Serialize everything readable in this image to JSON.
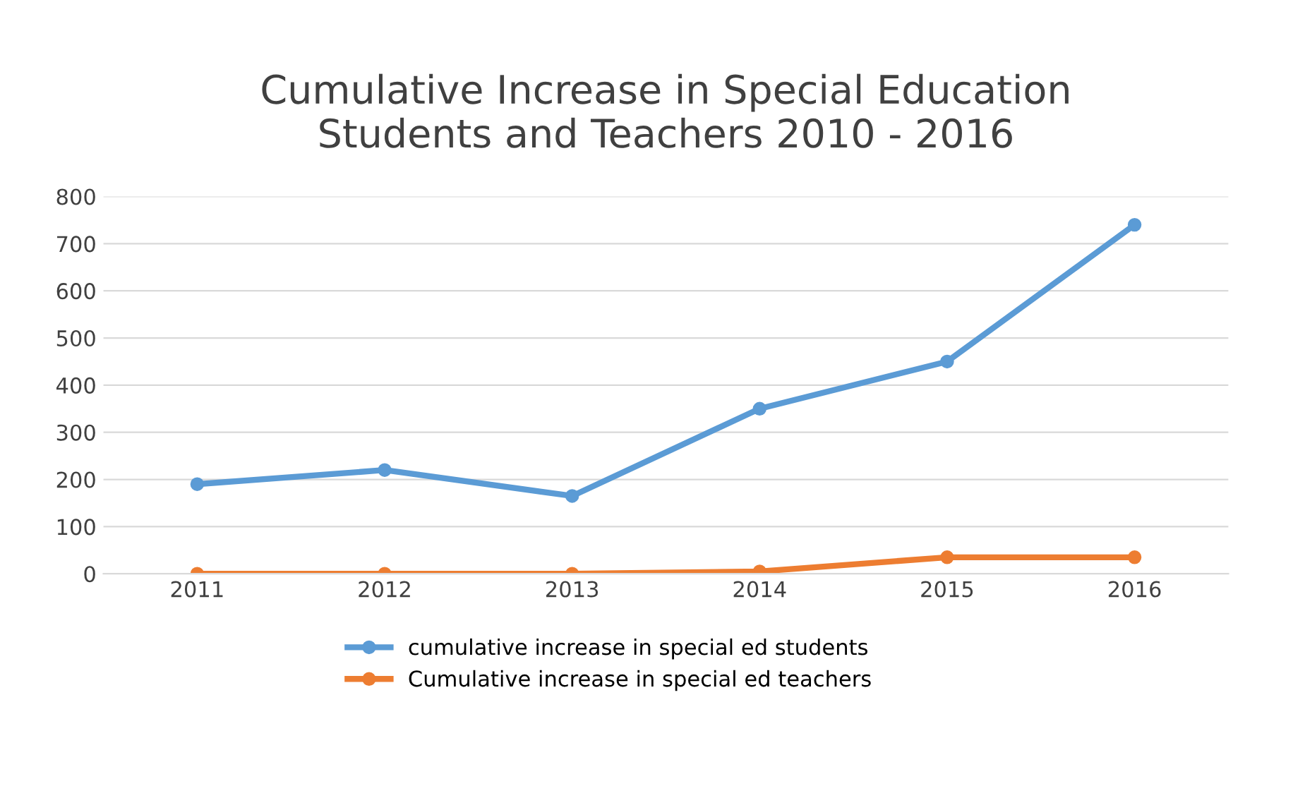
{
  "chart_data": {
    "type": "line",
    "title": "Cumulative Increase in Special Education\nStudents and Teachers 2010 - 2016",
    "categories": [
      "2011",
      "2012",
      "2013",
      "2014",
      "2015",
      "2016"
    ],
    "series": [
      {
        "name": "cumulative increase in special ed students",
        "color": "#5b9bd5",
        "values": [
          190,
          220,
          165,
          350,
          450,
          740
        ]
      },
      {
        "name": "Cumulative increase in special ed teachers",
        "color": "#ed7d31",
        "values": [
          0,
          0,
          0,
          5,
          35,
          35
        ]
      }
    ],
    "ylim": [
      0,
      800
    ],
    "yticks": [
      0,
      100,
      200,
      300,
      400,
      500,
      600,
      700,
      800
    ],
    "grid": "y",
    "legend": "bottom",
    "marker": "circle"
  }
}
